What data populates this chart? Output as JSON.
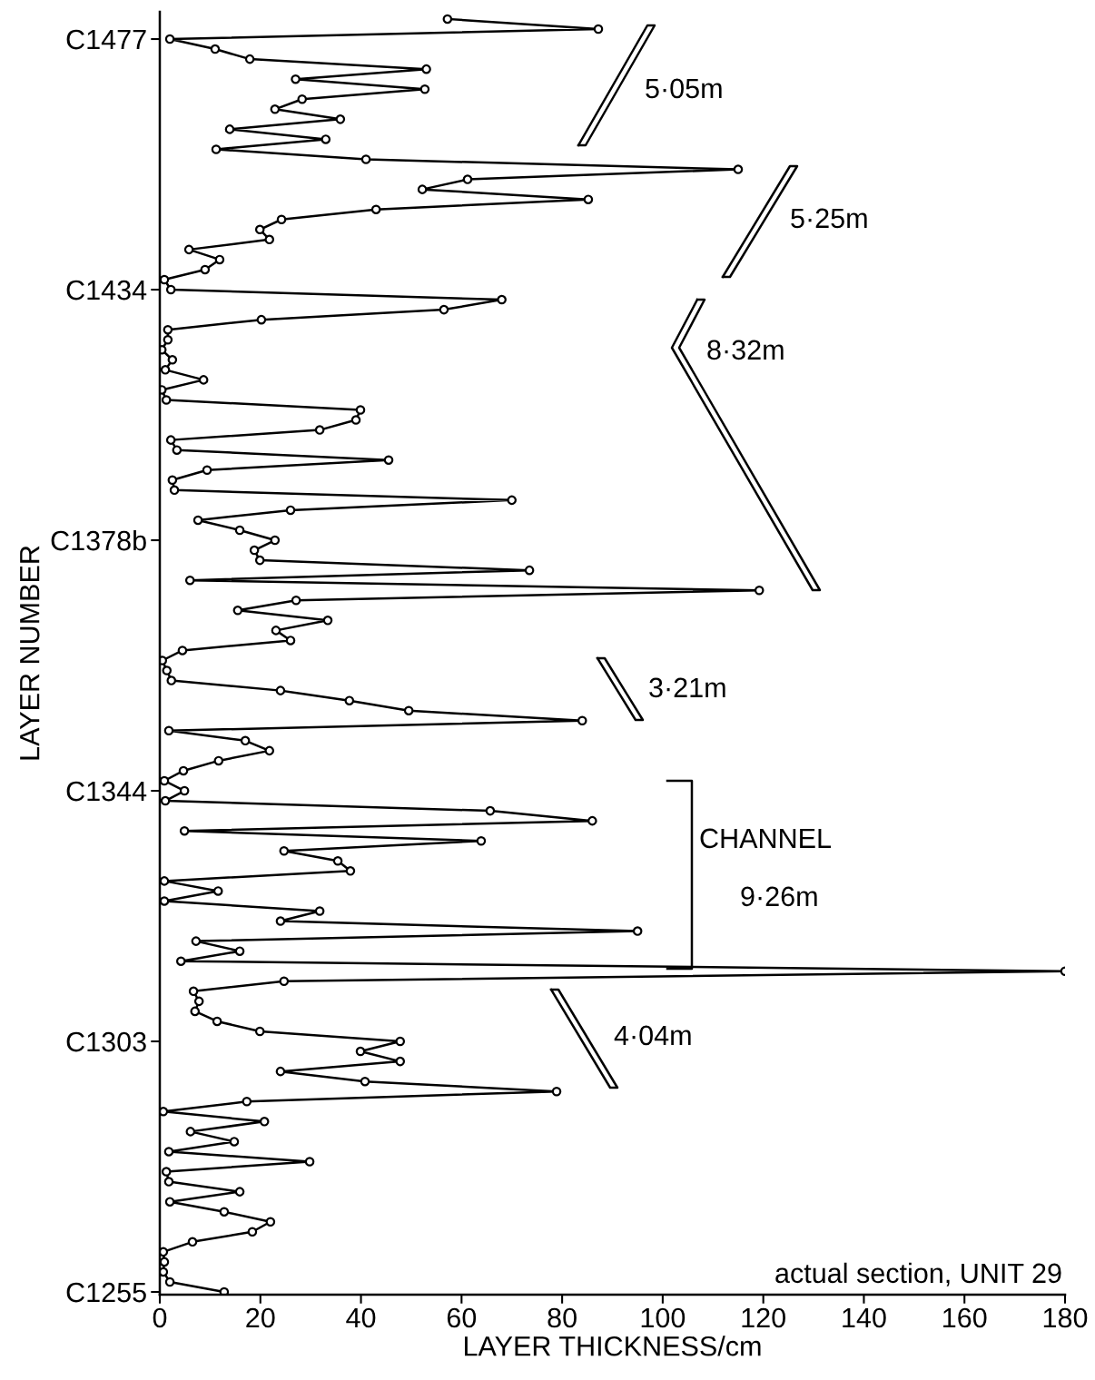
{
  "chart_data": {
    "type": "line",
    "xlabel": "LAYER THICKNESS/cm",
    "ylabel": "LAYER NUMBER",
    "orientation": "horizontal",
    "xlim": [
      0,
      180
    ],
    "xticks": [
      0,
      20,
      40,
      60,
      80,
      100,
      120,
      140,
      160,
      180
    ],
    "categories": [
      null,
      null,
      "C1477",
      null,
      null,
      null,
      null,
      null,
      null,
      null,
      null,
      null,
      null,
      null,
      null,
      null,
      null,
      null,
      null,
      null,
      null,
      null,
      null,
      null,
      null,
      null,
      null,
      "C1434",
      null,
      null,
      null,
      null,
      null,
      null,
      null,
      null,
      null,
      null,
      null,
      null,
      null,
      null,
      null,
      null,
      null,
      null,
      null,
      null,
      null,
      null,
      null,
      null,
      "C1378b",
      null,
      null,
      null,
      null,
      null,
      null,
      null,
      null,
      null,
      null,
      null,
      null,
      null,
      null,
      null,
      null,
      null,
      null,
      null,
      null,
      null,
      null,
      null,
      null,
      "C1344",
      null,
      null,
      null,
      null,
      null,
      null,
      null,
      null,
      null,
      null,
      null,
      null,
      null,
      null,
      null,
      null,
      null,
      null,
      null,
      null,
      null,
      null,
      null,
      null,
      "C1303",
      null,
      null,
      null,
      null,
      null,
      null,
      null,
      null,
      null,
      null,
      null,
      null,
      null,
      null,
      null,
      null,
      null,
      null,
      null,
      null,
      null,
      null,
      null,
      null,
      "C1255"
    ],
    "marker": "circle",
    "line_style": "solid",
    "grid": false,
    "legend": false,
    "series": [
      {
        "color": "#000000",
        "values": [
          57.2,
          87.2,
          2,
          11,
          17.9,
          53,
          27,
          52.7,
          28.3,
          22.9,
          35.9,
          13.9,
          33,
          11.2,
          41,
          115,
          61.2,
          52.2,
          85.2,
          43,
          24.2,
          19.9,
          21.8,
          5.8,
          11.9,
          9,
          0.9,
          2.2,
          68,
          56.5,
          20.2,
          1.6,
          1.6,
          0.4,
          2.5,
          1.1,
          8.7,
          0.4,
          1.3,
          39.9,
          39,
          31.8,
          2.2,
          3.4,
          45.5,
          9.4,
          2.5,
          2.9,
          70,
          26,
          7.6,
          15.9,
          22.9,
          18.8,
          19.9,
          73.5,
          6,
          119.2,
          27.1,
          15.5,
          33.4,
          23.1,
          26,
          4.5,
          0.5,
          1.4,
          2.3,
          24,
          37.7,
          49.5,
          84,
          1.8,
          17,
          21.8,
          11.7,
          4.7,
          0.9,
          4.9,
          1.1,
          65.7,
          86,
          4.9,
          63.9,
          24.7,
          35.4,
          37.9,
          0.9,
          11.6,
          0.9,
          31.8,
          24,
          95,
          7.2,
          15.9,
          4.2,
          180,
          24.7,
          6.7,
          7.8,
          7,
          11.4,
          19.9,
          47.8,
          39.9,
          47.8,
          24,
          40.8,
          78.9,
          17.3,
          0.7,
          20.8,
          6.1,
          14.8,
          1.8,
          29.8,
          1.3,
          1.8,
          15.9,
          2,
          12.8,
          22,
          18.4,
          6.5,
          0.7,
          0.9,
          0.7,
          2,
          12.8
        ]
      }
    ],
    "annotations": [
      "5·05m",
      "5·25m",
      "8·32m",
      "3·21m",
      "CHANNEL",
      "9·26m",
      "4·04m",
      "actual section, UNIT 29"
    ]
  }
}
